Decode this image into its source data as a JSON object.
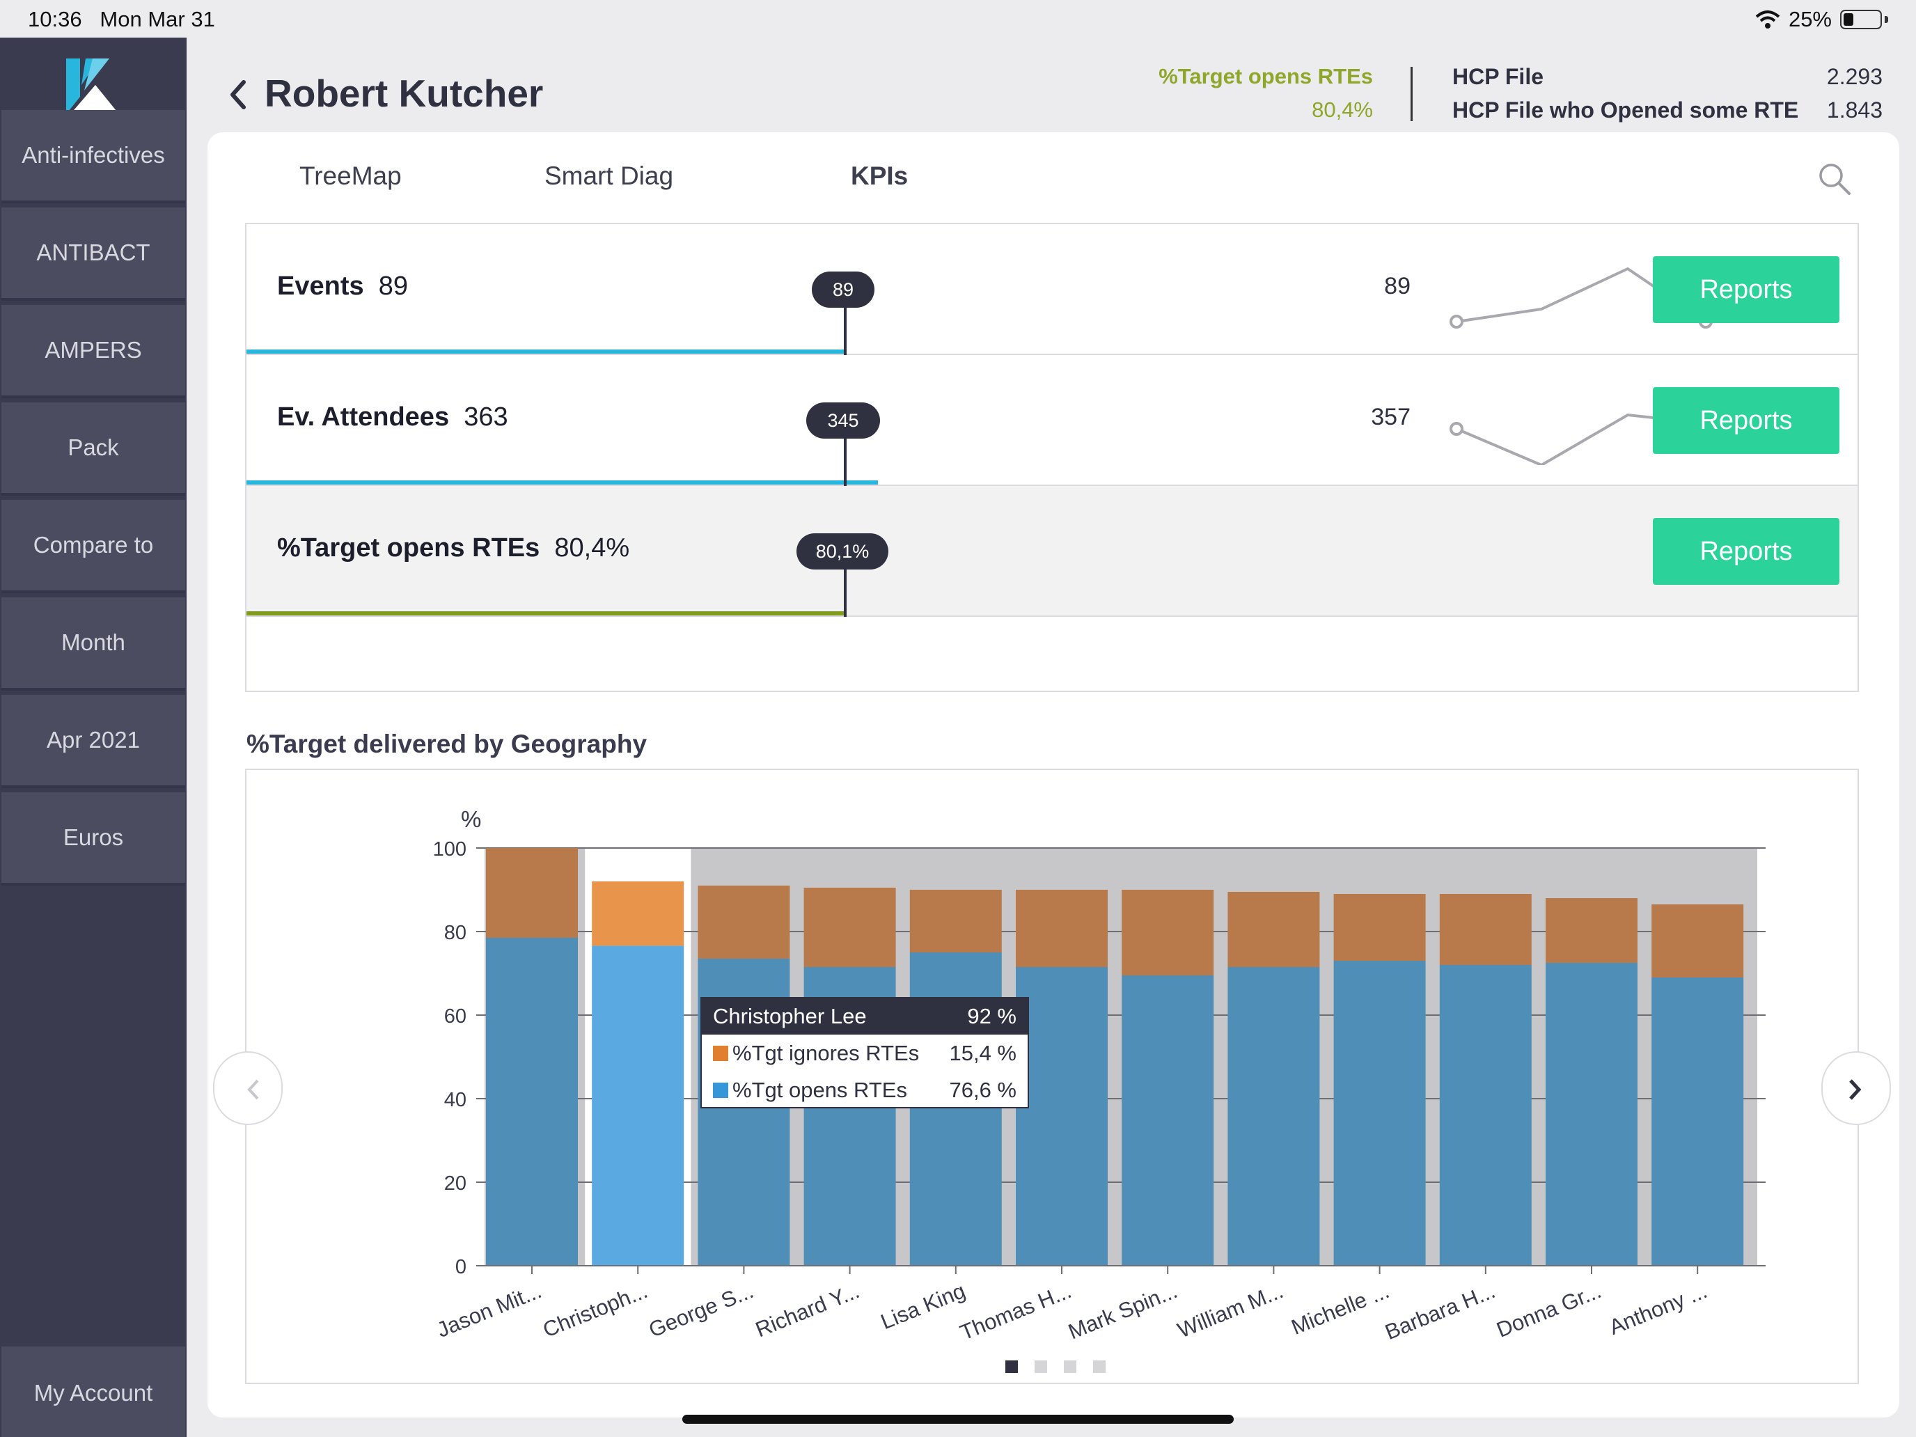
{
  "status_bar": {
    "time": "10:36",
    "date": "Mon Mar 31",
    "battery": "25%"
  },
  "sidebar": {
    "items": [
      {
        "label": "Anti-infectives"
      },
      {
        "label": "ANTIBACT"
      },
      {
        "label": "AMPERS"
      },
      {
        "label": "Pack"
      },
      {
        "label": "Compare to"
      },
      {
        "label": "Month"
      },
      {
        "label": "Apr 2021"
      },
      {
        "label": "Euros"
      }
    ],
    "account": "My Account"
  },
  "header": {
    "title": "Robert Kutcher",
    "kpi_label": "%Target opens RTEs",
    "kpi_value": "80,4%",
    "stats": [
      {
        "label": "HCP File",
        "value": "2.293"
      },
      {
        "label": "HCP File who Opened some RTE",
        "value": "1.843"
      }
    ]
  },
  "tabs": [
    {
      "label": "TreeMap"
    },
    {
      "label": "Smart Diag"
    },
    {
      "label": "KPIs",
      "active": true
    }
  ],
  "kpis": [
    {
      "name": "Events",
      "value": "89",
      "target": "89",
      "previous": "89",
      "current": "89",
      "bar_fraction": 0.372,
      "bar_color": "#29b6dd",
      "button": "Reports"
    },
    {
      "name": "Ev. Attendees",
      "value": "363",
      "target": "345",
      "previous": "357",
      "current": "363",
      "bar_fraction": 0.392,
      "bar_color": "#29b6dd",
      "button": "Reports"
    },
    {
      "name": "%Target opens RTEs",
      "value": "80,4%",
      "target": "80,1%",
      "previous": "",
      "current": "",
      "bar_fraction": 0.372,
      "bar_color": "#7f9a1c",
      "button": "Reports"
    }
  ],
  "section_title": "%Target delivered by Geography",
  "tooltip": {
    "name": "Christopher Lee",
    "total": "92 %",
    "rows": [
      {
        "label": "%Tgt ignores RTEs",
        "value": "15,4 %",
        "color": "#e8944a"
      },
      {
        "label": "%Tgt opens RTEs",
        "value": "76,6 %",
        "color": "#5aa9e1"
      }
    ]
  },
  "colors": {
    "ignores": "#b87a4a",
    "opens": "#4f8fb7",
    "ignores_hl": "#e8944a",
    "opens_hl": "#5aa9e1",
    "accent": "#2bd39b"
  },
  "chart_data": {
    "type": "bar",
    "stacked": true,
    "ylabel": "%",
    "ylim": [
      0,
      100
    ],
    "yticks": [
      0,
      20,
      40,
      60,
      80,
      100
    ],
    "grid": true,
    "highlighted_index": 1,
    "categories": [
      "Jason Mit...",
      "Christoph...",
      "George S...",
      "Richard Y...",
      "Lisa King",
      "Thomas H...",
      "Mark Spin...",
      "William M...",
      "Michelle ...",
      "Barbara H...",
      "Donna Gr...",
      "Anthony ..."
    ],
    "series": [
      {
        "name": "%Tgt opens RTEs",
        "values": [
          78.5,
          76.6,
          73.5,
          71.5,
          75,
          71.5,
          69.5,
          71.5,
          73,
          72,
          72.5,
          69
        ]
      },
      {
        "name": "%Tgt ignores RTEs",
        "values": [
          21.5,
          15.4,
          17.5,
          19,
          15,
          18.5,
          20.5,
          18,
          16,
          17,
          15.5,
          17.5
        ]
      }
    ],
    "pages": 4,
    "active_page": 0
  }
}
